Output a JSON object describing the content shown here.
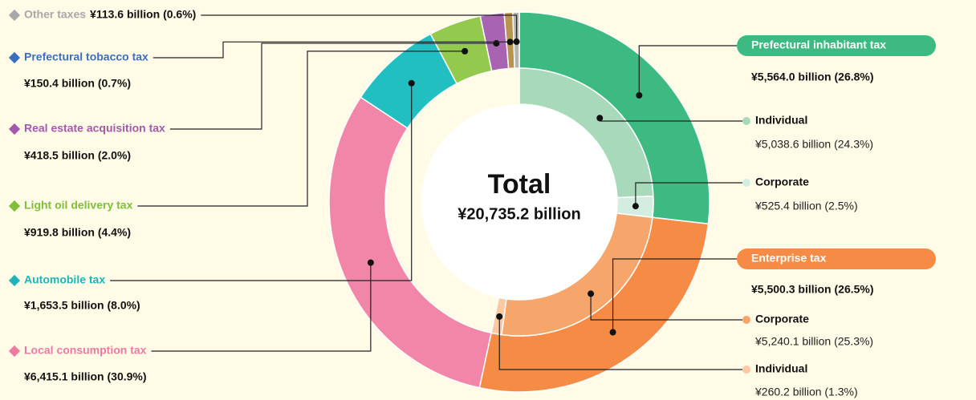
{
  "chart_data": {
    "type": "pie",
    "center_title": "Total",
    "total": 20735.2,
    "total_label": "¥20,735.2 billion",
    "categories": [
      "Prefectural inhabitant tax",
      "Enterprise tax",
      "Local consumption tax",
      "Automobile tax",
      "Light oil delivery tax",
      "Real estate acquisition tax",
      "Prefectural tobacco tax",
      "Other taxes"
    ],
    "values": [
      5564.0,
      5500.3,
      6415.1,
      1653.5,
      919.8,
      418.5,
      150.4,
      113.6
    ],
    "value_labels": [
      "¥5,564.0 billion (26.8%)",
      "¥5,500.3 billion (26.5%)",
      "¥6,415.1 billion (30.9%)",
      "¥1,653.5 billion (8.0%)",
      "¥919.8 billion (4.4%)",
      "¥418.5 billion (2.0%)",
      "¥150.4 billion (0.7%)",
      "¥113.6 billion (0.6%)"
    ],
    "colors": [
      "#3dba82",
      "#f58b45",
      "#f286a8",
      "#22bfc0",
      "#93c94d",
      "#a864b0",
      "#b8944e",
      "#b4b4b4"
    ],
    "label_colors": [
      "#3dba82",
      "#f58b45",
      "#ee7aa0",
      "#1fb5b8",
      "#7fbf3a",
      "#a25aab",
      "#3a6fc0",
      "#a8a8a8"
    ],
    "inner": {
      "categories": [
        "Individual",
        "Corporate",
        "Corporate",
        "Individual"
      ],
      "values": [
        5038.6,
        525.4,
        5240.1,
        260.2
      ],
      "value_labels": [
        "¥5,038.6 billion (24.3%)",
        "¥525.4 billion (2.5%)",
        "¥5,240.1 billion (25.3%)",
        "¥260.2 billion (1.3%)"
      ],
      "colors": [
        "#a8d9bb",
        "#d3ede0",
        "#f6a56b",
        "#fcc9a2"
      ]
    }
  }
}
